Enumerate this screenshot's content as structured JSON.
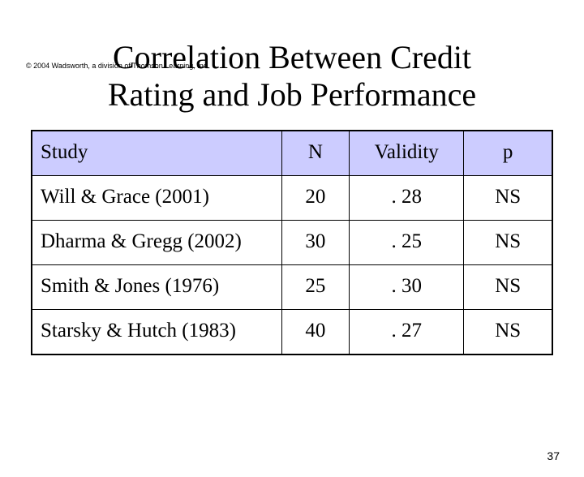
{
  "copyright": "© 2004 Wadsworth, a division of Thomson Learning, Inc.",
  "title_line1": "Correlation Between Credit",
  "title_line2": "Rating and Job Performance",
  "table": {
    "columns": [
      "Study",
      "N",
      "Validity",
      "p"
    ],
    "rows": [
      [
        "Will & Grace (2001)",
        "20",
        ". 28",
        "NS"
      ],
      [
        "Dharma & Gregg (2002)",
        "30",
        ". 25",
        "NS"
      ],
      [
        "Smith & Jones (1976)",
        "25",
        ". 30",
        "NS"
      ],
      [
        "Starsky & Hutch (1983)",
        "40",
        ". 27",
        "NS"
      ]
    ],
    "header_bg": "#ccccff",
    "border_color": "#000000",
    "font_family": "Times New Roman",
    "header_fontsize": 25,
    "cell_fontsize": 25,
    "column_align": [
      "left",
      "center",
      "center",
      "center"
    ],
    "column_widths_pct": [
      48,
      13,
      22,
      17
    ]
  },
  "page_number": "37",
  "background_color": "#ffffff",
  "title_color": "#000000",
  "title_fontsize": 40
}
